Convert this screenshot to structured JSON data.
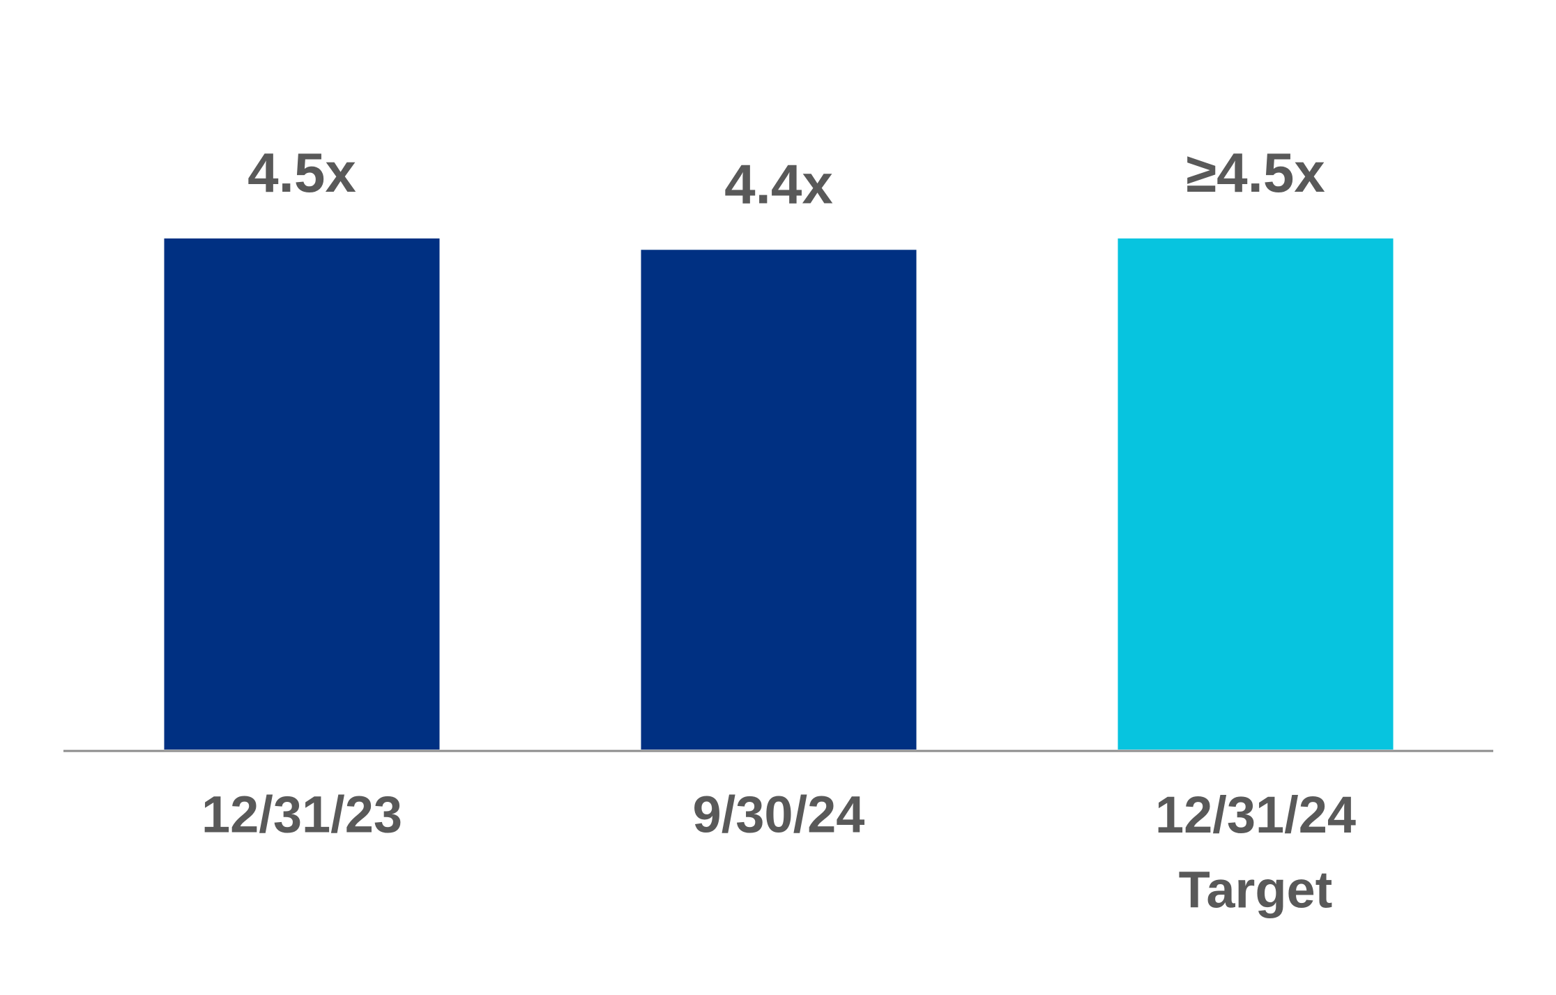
{
  "chart_data": {
    "type": "bar",
    "categories": [
      "12/31/23",
      "9/30/24",
      "12/31/24\nTarget"
    ],
    "values": [
      4.5,
      4.4,
      4.5
    ],
    "value_labels": [
      "4.5x",
      "4.4x",
      "≥4.5x"
    ],
    "colors": [
      "#003082",
      "#003082",
      "#07c4df"
    ]
  }
}
